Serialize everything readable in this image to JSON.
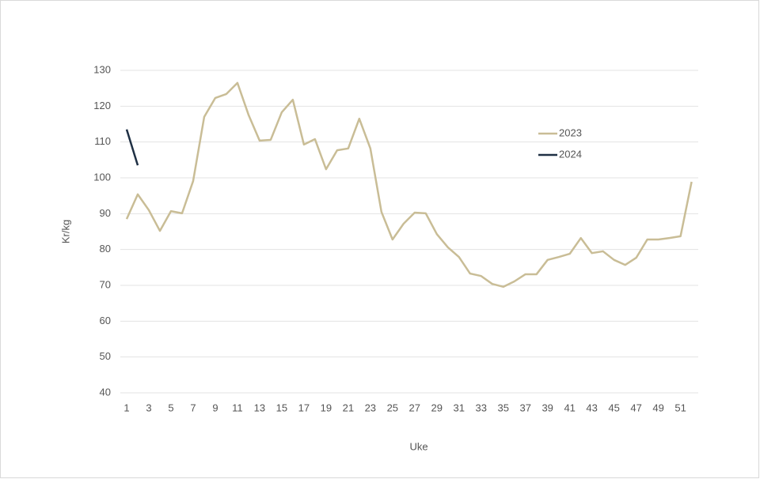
{
  "chart_data": {
    "type": "line",
    "x_label": "Uke",
    "y_label": "Kr/kg",
    "x": [
      1,
      2,
      3,
      4,
      5,
      6,
      7,
      8,
      9,
      10,
      11,
      12,
      13,
      14,
      15,
      16,
      17,
      18,
      19,
      20,
      21,
      22,
      23,
      24,
      25,
      26,
      27,
      28,
      29,
      30,
      31,
      32,
      33,
      34,
      35,
      36,
      37,
      38,
      39,
      40,
      41,
      42,
      43,
      44,
      45,
      46,
      47,
      48,
      49,
      50,
      51,
      52
    ],
    "series": [
      {
        "name": "2023",
        "color": "#c9bd96",
        "values": [
          88.5,
          95.4,
          91,
          85.2,
          90.7,
          90.1,
          99.1,
          117,
          122.3,
          123.4,
          126.5,
          117.6,
          110.4,
          110.6,
          118.3,
          121.8,
          109.3,
          110.8,
          102.4,
          107.7,
          108.2,
          116.5,
          108.2,
          90.5,
          82.8,
          87.2,
          90.3,
          90.1,
          84.3,
          80.6,
          77.9,
          73.3,
          72.6,
          70.4,
          69.6,
          71.1,
          73.1,
          73.1,
          77.1,
          77.9,
          78.8,
          83.2,
          79,
          79.5,
          77.1,
          75.7,
          77.7,
          82.8,
          82.8,
          83.2,
          83.7,
          98.9
        ]
      },
      {
        "name": "2024",
        "color": "#1f3044",
        "values": [
          113.5,
          103.5,
          null,
          null,
          null,
          null,
          null,
          null,
          null,
          null,
          null,
          null,
          null,
          null,
          null,
          null,
          null,
          null,
          null,
          null,
          null,
          null,
          null,
          null,
          null,
          null,
          null,
          null,
          null,
          null,
          null,
          null,
          null,
          null,
          null,
          null,
          null,
          null,
          null,
          null,
          null,
          null,
          null,
          null,
          null,
          null,
          null,
          null,
          null,
          null,
          null,
          null
        ]
      }
    ],
    "xlim": [
      1,
      52
    ],
    "xticks": [
      1,
      3,
      5,
      7,
      9,
      11,
      13,
      15,
      17,
      19,
      21,
      23,
      25,
      27,
      29,
      31,
      33,
      35,
      37,
      39,
      41,
      43,
      45,
      47,
      49,
      51
    ],
    "ylim": [
      40,
      130
    ],
    "yticks": [
      40,
      50,
      60,
      70,
      80,
      90,
      100,
      110,
      120,
      130
    ],
    "grid": true,
    "legend": "upper right"
  }
}
